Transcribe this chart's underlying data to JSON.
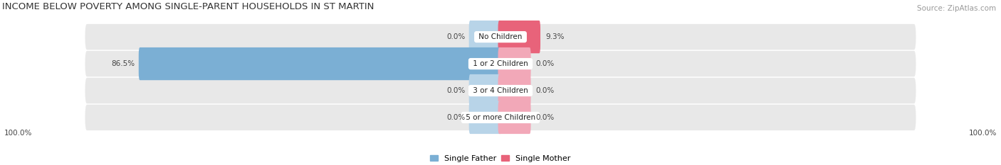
{
  "title": "INCOME BELOW POVERTY AMONG SINGLE-PARENT HOUSEHOLDS IN ST MARTIN",
  "source": "Source: ZipAtlas.com",
  "categories": [
    "No Children",
    "1 or 2 Children",
    "3 or 4 Children",
    "5 or more Children"
  ],
  "single_father": [
    0.0,
    86.5,
    0.0,
    0.0
  ],
  "single_mother": [
    9.3,
    0.0,
    0.0,
    0.0
  ],
  "father_color": "#7bafd4",
  "mother_color": "#e8637a",
  "father_color_light": "#b8d4e8",
  "mother_color_light": "#f2a8b8",
  "bg_row_color": "#e8e8e8",
  "bg_row_color2": "#f0f0f0",
  "axis_label_left": "100.0%",
  "axis_label_right": "100.0%",
  "max_val": 100.0,
  "stub_val": 7.0,
  "bar_height": 0.62,
  "title_fontsize": 9.5,
  "label_fontsize": 7.5,
  "cat_fontsize": 7.5,
  "source_fontsize": 7.5,
  "legend_fontsize": 8
}
